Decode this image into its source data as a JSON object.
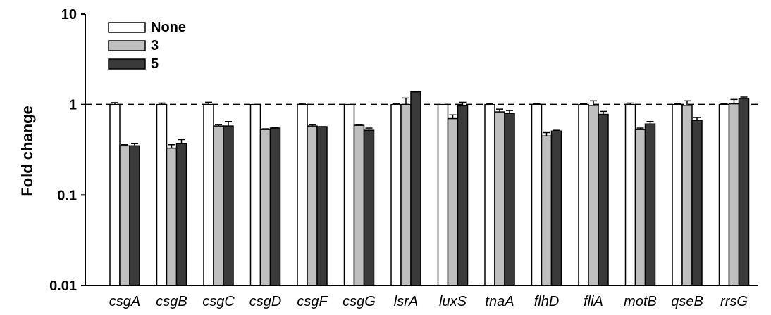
{
  "chart_data": {
    "type": "bar",
    "ylabel": "Fold change",
    "xlabel": "",
    "yscale": "log",
    "ylim": [
      0.01,
      10
    ],
    "yticks": [
      "10",
      "1",
      "0.1",
      "0.01"
    ],
    "reference_line": 1,
    "legend_position": "top-left",
    "categories": [
      "csgA",
      "csgB",
      "csgC",
      "csgD",
      "csgF",
      "csgG",
      "lsrA",
      "luxS",
      "tnaA",
      "flhD",
      "fliA",
      "motB",
      "qseB",
      "rrsG"
    ],
    "series": [
      {
        "name": "None",
        "color": "#ffffff",
        "values": [
          1.0,
          1.0,
          1.0,
          1.0,
          1.0,
          1.0,
          1.0,
          1.0,
          1.0,
          1.0,
          1.0,
          1.0,
          1.0,
          1.0
        ],
        "errors": [
          0.05,
          0.04,
          0.06,
          0.0,
          0.03,
          0.0,
          0.02,
          0.0,
          0.03,
          0.02,
          0.02,
          0.04,
          0.02,
          0.02
        ]
      },
      {
        "name": "3",
        "color": "#bfbfbf",
        "values": [
          0.35,
          0.33,
          0.58,
          0.53,
          0.58,
          0.59,
          1.0,
          0.7,
          0.83,
          0.45,
          0.98,
          0.53,
          0.98,
          1.02
        ],
        "errors": [
          0.01,
          0.03,
          0.02,
          0.01,
          0.02,
          0.01,
          0.18,
          0.07,
          0.06,
          0.04,
          0.12,
          0.02,
          0.12,
          0.12
        ]
      },
      {
        "name": "5",
        "color": "#3a3a3a",
        "values": [
          0.35,
          0.37,
          0.58,
          0.55,
          0.57,
          0.52,
          1.38,
          0.97,
          0.8,
          0.51,
          0.78,
          0.61,
          0.67,
          1.17
        ],
        "errors": [
          0.02,
          0.04,
          0.07,
          0.01,
          0.0,
          0.03,
          0.0,
          0.09,
          0.06,
          0.01,
          0.06,
          0.04,
          0.05,
          0.04
        ]
      }
    ]
  }
}
